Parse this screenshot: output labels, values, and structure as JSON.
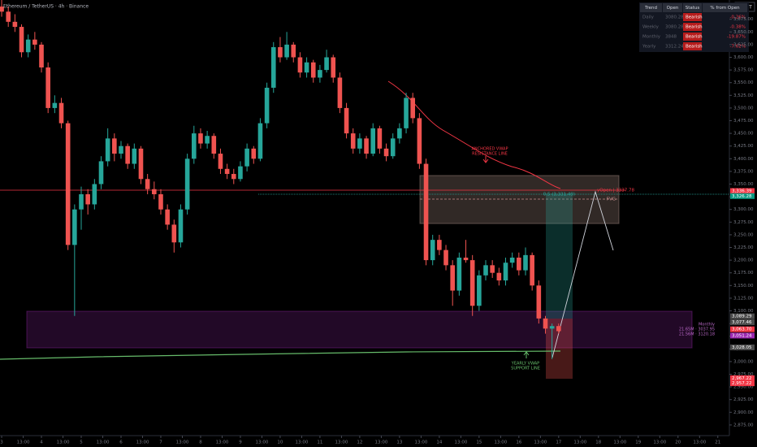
{
  "chart_data": {
    "type": "candlestick",
    "symbol": "Ethereum / TetherUS · 4h · Binance",
    "currency": "USDT",
    "up_color": "#26a69a",
    "down_color": "#ef5350",
    "candles": [
      [
        3700,
        3715,
        3680,
        3690
      ],
      [
        3690,
        3700,
        3660,
        3670
      ],
      [
        3670,
        3685,
        3650,
        3660
      ],
      [
        3660,
        3665,
        3600,
        3610
      ],
      [
        3610,
        3645,
        3600,
        3635
      ],
      [
        3635,
        3650,
        3615,
        3625
      ],
      [
        3625,
        3630,
        3570,
        3580
      ],
      [
        3580,
        3590,
        3490,
        3500
      ],
      [
        3500,
        3525,
        3490,
        3510
      ],
      [
        3510,
        3520,
        3460,
        3470
      ],
      [
        3470,
        3475,
        3220,
        3230
      ],
      [
        3230,
        3310,
        3090,
        3300
      ],
      [
        3300,
        3345,
        3260,
        3330
      ],
      [
        3330,
        3340,
        3290,
        3310
      ],
      [
        3310,
        3360,
        3300,
        3350
      ],
      [
        3350,
        3405,
        3340,
        3395
      ],
      [
        3395,
        3460,
        3385,
        3440
      ],
      [
        3440,
        3450,
        3395,
        3410
      ],
      [
        3410,
        3435,
        3400,
        3425
      ],
      [
        3425,
        3430,
        3380,
        3390
      ],
      [
        3390,
        3430,
        3380,
        3420
      ],
      [
        3420,
        3425,
        3350,
        3360
      ],
      [
        3360,
        3370,
        3330,
        3340
      ],
      [
        3340,
        3355,
        3320,
        3330
      ],
      [
        3330,
        3340,
        3290,
        3300
      ],
      [
        3300,
        3310,
        3260,
        3270
      ],
      [
        3270,
        3280,
        3215,
        3235
      ],
      [
        3235,
        3310,
        3225,
        3300
      ],
      [
        3300,
        3410,
        3290,
        3400
      ],
      [
        3400,
        3465,
        3390,
        3450
      ],
      [
        3450,
        3460,
        3420,
        3430
      ],
      [
        3430,
        3455,
        3420,
        3445
      ],
      [
        3445,
        3450,
        3400,
        3410
      ],
      [
        3410,
        3420,
        3370,
        3380
      ],
      [
        3380,
        3390,
        3360,
        3370
      ],
      [
        3370,
        3380,
        3350,
        3360
      ],
      [
        3360,
        3395,
        3355,
        3385
      ],
      [
        3385,
        3430,
        3375,
        3420
      ],
      [
        3420,
        3425,
        3390,
        3400
      ],
      [
        3400,
        3480,
        3395,
        3470
      ],
      [
        3470,
        3550,
        3460,
        3540
      ],
      [
        3540,
        3630,
        3530,
        3620
      ],
      [
        3620,
        3640,
        3590,
        3600
      ],
      [
        3600,
        3650,
        3595,
        3625
      ],
      [
        3625,
        3630,
        3590,
        3600
      ],
      [
        3600,
        3610,
        3560,
        3570
      ],
      [
        3570,
        3600,
        3560,
        3590
      ],
      [
        3590,
        3595,
        3550,
        3560
      ],
      [
        3560,
        3585,
        3550,
        3575
      ],
      [
        3575,
        3615,
        3570,
        3600
      ],
      [
        3600,
        3605,
        3550,
        3560
      ],
      [
        3560,
        3570,
        3490,
        3500
      ],
      [
        3500,
        3510,
        3440,
        3450
      ],
      [
        3450,
        3460,
        3410,
        3420
      ],
      [
        3420,
        3450,
        3410,
        3440
      ],
      [
        3440,
        3445,
        3400,
        3410
      ],
      [
        3410,
        3470,
        3405,
        3460
      ],
      [
        3460,
        3465,
        3410,
        3420
      ],
      [
        3420,
        3430,
        3395,
        3405
      ],
      [
        3405,
        3450,
        3400,
        3440
      ],
      [
        3440,
        3470,
        3430,
        3460
      ],
      [
        3460,
        3530,
        3450,
        3520
      ],
      [
        3520,
        3530,
        3470,
        3480
      ],
      [
        3480,
        3490,
        3380,
        3390
      ],
      [
        3390,
        3400,
        3190,
        3200
      ],
      [
        3200,
        3250,
        3190,
        3240
      ],
      [
        3240,
        3250,
        3210,
        3220
      ],
      [
        3220,
        3230,
        3180,
        3190
      ],
      [
        3190,
        3200,
        3110,
        3140
      ],
      [
        3140,
        3215,
        3130,
        3205
      ],
      [
        3205,
        3240,
        3195,
        3200
      ],
      [
        3200,
        3210,
        3090,
        3110
      ],
      [
        3110,
        3180,
        3100,
        3170
      ],
      [
        3170,
        3200,
        3160,
        3190
      ],
      [
        3190,
        3200,
        3165,
        3175
      ],
      [
        3175,
        3185,
        3150,
        3160
      ],
      [
        3160,
        3205,
        3150,
        3195
      ],
      [
        3195,
        3215,
        3185,
        3205
      ],
      [
        3205,
        3215,
        3170,
        3180
      ],
      [
        3180,
        3225,
        3170,
        3210
      ],
      [
        3210,
        3215,
        3140,
        3150
      ],
      [
        3150,
        3160,
        3075,
        3085
      ],
      [
        3085,
        3090,
        3055,
        3065
      ],
      [
        3065,
        3075,
        3005,
        3070
      ],
      [
        3070,
        3075,
        3055,
        3060
      ]
    ],
    "xlim": [
      -0.25,
      109.5
    ],
    "xticks": [
      {
        "value": 0,
        "label": "3"
      },
      {
        "value": 3.25,
        "label": "13:00"
      },
      {
        "value": 6,
        "label": "4"
      },
      {
        "value": 9.25,
        "label": "13:00"
      },
      {
        "value": 12,
        "label": "5"
      },
      {
        "value": 15.25,
        "label": "13:00"
      },
      {
        "value": 18,
        "label": "6"
      },
      {
        "value": 21.25,
        "label": "13:00"
      },
      {
        "value": 24,
        "label": "7"
      },
      {
        "value": 27.25,
        "label": "13:00"
      },
      {
        "value": 30,
        "label": "8"
      },
      {
        "value": 33.25,
        "label": "13:00"
      },
      {
        "value": 36,
        "label": "9"
      },
      {
        "value": 39.25,
        "label": "13:00"
      },
      {
        "value": 42,
        "label": "10"
      },
      {
        "value": 45.25,
        "label": "13:00"
      },
      {
        "value": 48,
        "label": "11"
      },
      {
        "value": 51.25,
        "label": "13:00"
      },
      {
        "value": 54,
        "label": "12"
      },
      {
        "value": 57.25,
        "label": "13:00"
      },
      {
        "value": 60,
        "label": "13"
      },
      {
        "value": 63.25,
        "label": "13:00"
      },
      {
        "value": 66,
        "label": "14"
      },
      {
        "value": 69.25,
        "label": "13:00"
      },
      {
        "value": 72,
        "label": "15"
      },
      {
        "value": 75.25,
        "label": "13:00"
      },
      {
        "value": 78,
        "label": "16"
      },
      {
        "value": 81.25,
        "label": "13:00"
      },
      {
        "value": 84,
        "label": "17"
      },
      {
        "value": 87.25,
        "label": "13:00"
      },
      {
        "value": 90,
        "label": "18"
      },
      {
        "value": 93.25,
        "label": "13:00"
      },
      {
        "value": 96,
        "label": "19"
      },
      {
        "value": 99.25,
        "label": "13:00"
      },
      {
        "value": 102,
        "label": "20"
      },
      {
        "value": 105.25,
        "label": "13:00"
      },
      {
        "value": 108,
        "label": "21"
      }
    ],
    "ylim": [
      2854,
      3713
    ],
    "yticks": [
      {
        "value": 2875,
        "label": "2,875.00"
      },
      {
        "value": 2900,
        "label": "2,900.00"
      },
      {
        "value": 2925,
        "label": "2,925.00"
      },
      {
        "value": 2950,
        "label": "2,950.00"
      },
      {
        "value": 2975,
        "label": "2,975.00"
      },
      {
        "value": 3000,
        "label": "3,000.00"
      },
      {
        "value": 3025,
        "label": "3,025.00"
      },
      {
        "value": 3050,
        "label": "3,050.00"
      },
      {
        "value": 3075,
        "label": "3,075.00"
      },
      {
        "value": 3100,
        "label": "3,100.00"
      },
      {
        "value": 3125,
        "label": "3,125.00"
      },
      {
        "value": 3150,
        "label": "3,150.00"
      },
      {
        "value": 3175,
        "label": "3,175.00"
      },
      {
        "value": 3200,
        "label": "3,200.00"
      },
      {
        "value": 3225,
        "label": "3,225.00"
      },
      {
        "value": 3250,
        "label": "3,250.00"
      },
      {
        "value": 3275,
        "label": "3,275.00"
      },
      {
        "value": 3300,
        "label": "3,300.00"
      },
      {
        "value": 3325,
        "label": "3,325.00"
      },
      {
        "value": 3350,
        "label": "3,350.00"
      },
      {
        "value": 3375,
        "label": "3,375.00"
      },
      {
        "value": 3400,
        "label": "3,400.00"
      },
      {
        "value": 3425,
        "label": "3,425.00"
      },
      {
        "value": 3450,
        "label": "3,450.00"
      },
      {
        "value": 3475,
        "label": "3,475.00"
      },
      {
        "value": 3500,
        "label": "3,500.00"
      },
      {
        "value": 3525,
        "label": "3,525.00"
      },
      {
        "value": 3550,
        "label": "3,550.00"
      },
      {
        "value": 3575,
        "label": "3,575.00"
      },
      {
        "value": 3600,
        "label": "3,600.00"
      },
      {
        "value": 3625,
        "label": "3,625.00"
      },
      {
        "value": 3650,
        "label": "3,650.00"
      },
      {
        "value": 3675,
        "label": "3,675.00"
      }
    ],
    "price_tags": [
      {
        "value": 3336.39,
        "label": "3,336.39",
        "color": "#f23645"
      },
      {
        "value": 3326.28,
        "label": "3,326.28",
        "color": "#089981"
      },
      {
        "value": 3089.29,
        "label": "3,089.29",
        "color": "#4a4a4a"
      },
      {
        "value": 3077.46,
        "label": "3,077.46",
        "color": "#4a4a4a"
      },
      {
        "value": 3063.7,
        "label": "3,063.70",
        "color": "#f23645"
      },
      {
        "value": 3051.24,
        "label": "3,051.24",
        "color": "#9c27b0"
      },
      {
        "value": 3028.05,
        "label": "3,028.05",
        "color": "#4a4a4a"
      },
      {
        "value": 2967.22,
        "label": "2,967.22",
        "color": "#f23645"
      },
      {
        "value": 2957.22,
        "label": "2,957.22",
        "color": "#f23645"
      }
    ],
    "table": {
      "headers": [
        "Trend",
        "Open",
        "Status",
        "% from Open"
      ],
      "rows": [
        [
          "Daily",
          "3080.28",
          "Bearish",
          "-0.26%"
        ],
        [
          "Weekly",
          "3080.28",
          "Bearish",
          "-0.38%"
        ],
        [
          "Monthly",
          "3848",
          "Bearish",
          "-19.87%"
        ],
        [
          "Yearly",
          "3312.24",
          "Bearish",
          "-7.62%"
        ]
      ]
    },
    "annotations": {
      "vwap_resistance": [
        "ANCHORED VWAP",
        "RESISTANCE LINE"
      ],
      "vwap_support": [
        "YEARLY VWAP",
        "SUPPORT LINE"
      ],
      "fvg": "FVG",
      "yopen": "yOpen | 3337.78",
      "fib": "0.5 (3,331.49)",
      "monthly": [
        "Monthly",
        "21.65M · 3037.95",
        "21.56M · 3120.18"
      ]
    }
  }
}
